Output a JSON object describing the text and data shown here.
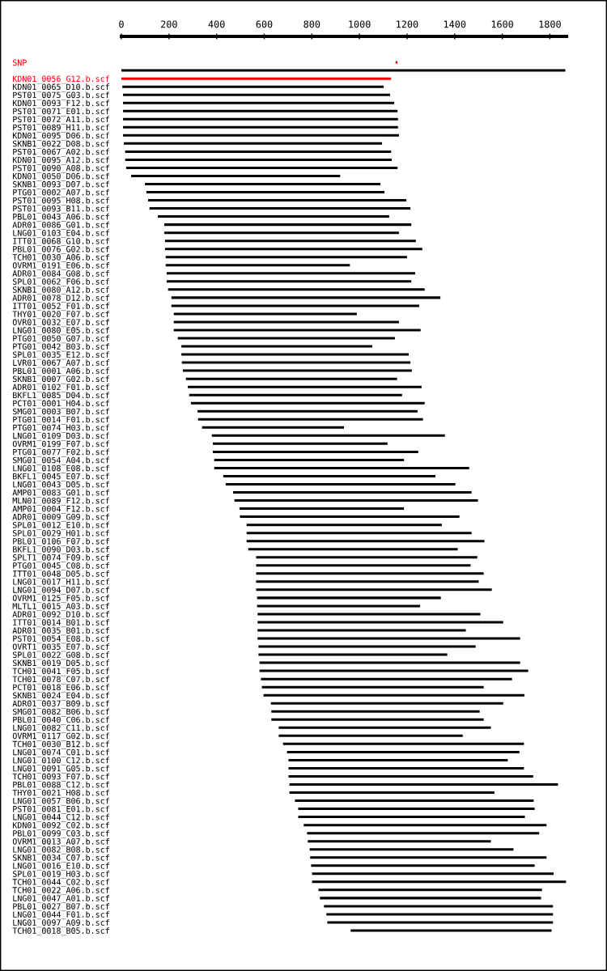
{
  "chart_data": {
    "type": "bar",
    "orientation": "horizontal",
    "categories": [
      "SNP",
      null,
      "KDN01_0056_G12.b.scf",
      "KDN01_0065_D10.b.scf",
      "PST01_0075_G03.b.scf",
      "KDN01_0093_F12.b.scf",
      "PST01_0071_E01.b.scf",
      "PST01_0072_A11.b.scf",
      "PST01_0089_H11.b.scf",
      "KDN01_0095_D06.b.scf",
      "SKNB1_0022_D08.b.scf",
      "PST01_0067_A02.b.scf",
      "KDN01_0095_A12.b.scf",
      "PST01_0090_A08.b.scf",
      "KDN01_0050_D06.b.scf",
      "SKNB1_0093_D07.b.scf",
      "PTG01_0002_A07.b.scf",
      "PST01_0095_H08.b.scf",
      "PST01_0093_B11.b.scf",
      "PBL01_0043_A06.b.scf",
      "ADR01_0086_G01.b.scf",
      "LNG01_0103_E04.b.scf",
      "ITT01_0068_G10.b.scf",
      "PBL01_0076_G02.b.scf",
      "TCH01_0030_A06.b.scf",
      "OVRM1_0191_E06.b.scf",
      "ADR01_0084_G08.b.scf",
      "SPL01_0062_F06.b.scf",
      "SKNB1_0080_A12.b.scf",
      "ADR01_0078_D12.b.scf",
      "ITT01_0052_F01.b.scf",
      "THY01_0020_F07.b.scf",
      "OVR01_0032_E07.b.scf",
      "LNG01_0080_E05.b.scf",
      "PTG01_0050_G07.b.scf",
      "PTG01_0042_B03.b.scf",
      "SPL01_0035_E12.b.scf",
      "LVR01_0067_A07.b.scf",
      "PBL01_0001_A06.b.scf",
      "SKNB1_0007_G02.b.scf",
      "ADR01_0102_F01.b.scf",
      "BKFL1_0085_D04.b.scf",
      "PCT01_0001_H04.b.scf",
      "SMG01_0003_B07.b.scf",
      "PTG01_0014_F01.b.scf",
      "PTG01_0074_H03.b.scf",
      "LNG01_0109_D03.b.scf",
      "OVRM1_0199_F07.b.scf",
      "PTG01_0077_F02.b.scf",
      "SMG01_0054_A04.b.scf",
      "LNG01_0108_E08.b.scf",
      "BKFL1_0045_E07.b.scf",
      "LNG01_0043_D05.b.scf",
      "AMP01_0083_G01.b.scf",
      "MLN01_0089_F12.b.scf",
      "AMP01_0004_F12.b.scf",
      "ADR01_0009_G09.b.scf",
      "SPL01_0012_E10.b.scf",
      "SPL01_0029_H01.b.scf",
      "PBL01_0106_F07.b.scf",
      "BKFL1_0090_D03.b.scf",
      "SPLT1_0074_F09.b.scf",
      "PTG01_0045_C08.b.scf",
      "ITT01_0048_D05.b.scf",
      "LNG01_0017_H11.b.scf",
      "LNG01_0094_D07.b.scf",
      "OVRM1_0125_F05.b.scf",
      "MLTL1_0015_A03.b.scf",
      "ADR01_0092_D10.b.scf",
      "ITT01_0014_B01.b.scf",
      "ADR01_0035_B01.b.scf",
      "PST01_0054_E08.b.scf",
      "OVRT1_0035_E07.b.scf",
      "SPL01_0022_G08.b.scf",
      "SKNB1_0019_D05.b.scf",
      "TCH01_0041_F05.b.scf",
      "TCH01_0078_C07.b.scf",
      "PCT01_0018_E06.b.scf",
      "SKNB1_0024_E04.b.scf",
      "ADR01_0037_B09.b.scf",
      "SMG01_0082_B06.b.scf",
      "PBL01_0040_C06.b.scf",
      "LNG01_0082_C11.b.scf",
      "OVRM1_0117_G02.b.scf",
      "TCH01_0030_B12.b.scf",
      "LNG01_0074_C01.b.scf",
      "LNG01_0100_C12.b.scf",
      "LNG01_0091_G05.b.scf",
      "TCH01_0093_F07.b.scf",
      "PBL01_0088_C12.b.scf",
      "THY01_0021_H08.b.scf",
      "LNG01_0057_B06.b.scf",
      "PST01_0081_E01.b.scf",
      "LNG01_0044_C12.b.scf",
      "KDN01_0092_C02.b.scf",
      "PBL01_0099_C03.b.scf",
      "OVRM1_0013_A07.b.scf",
      "LNG01_0082_B08.b.scf",
      "SKNB1_0034_C07.b.scf",
      "LNG01_0016_E10.b.scf",
      "SPL01_0019_H03.b.scf",
      "TCH01_0044_C02.b.scf",
      "TCH01_0022_A06.b.scf",
      "LNG01_0047_A01.b.scf",
      "PBL01_0027_B07.b.scf",
      "LNG01_0044_F01.b.scf",
      "LNG01_0097_A09.b.scf",
      "TCH01_0018_B05.b.scf"
    ],
    "base": [
      1152,
      0,
      0,
      4,
      7,
      7,
      7,
      7,
      7,
      7,
      10,
      16,
      16,
      20,
      41,
      99,
      105,
      112,
      118,
      153,
      180,
      180,
      183,
      183,
      186,
      186,
      190,
      190,
      196,
      210,
      210,
      220,
      220,
      220,
      237,
      252,
      252,
      254,
      258,
      271,
      279,
      285,
      292,
      320,
      322,
      339,
      380,
      384,
      384,
      390,
      390,
      428,
      438,
      469,
      475,
      496,
      498,
      526,
      526,
      526,
      533,
      566,
      566,
      566,
      566,
      566,
      570,
      570,
      572,
      572,
      572,
      572,
      576,
      576,
      580,
      580,
      586,
      590,
      597,
      628,
      630,
      630,
      661,
      661,
      679,
      696,
      702,
      702,
      702,
      706,
      706,
      729,
      743,
      743,
      766,
      780,
      783,
      791,
      793,
      797,
      801,
      801,
      828,
      834,
      851,
      861,
      865,
      963
    ],
    "values": [
      8,
      1865,
      1133,
      1098,
      1122,
      1139,
      1153,
      1155,
      1155,
      1159,
      1085,
      1117,
      1120,
      1140,
      878,
      989,
      1000,
      1085,
      1096,
      972,
      1038,
      986,
      1054,
      1081,
      1014,
      774,
      1044,
      1028,
      1078,
      1130,
      1041,
      769,
      946,
      1037,
      912,
      802,
      955,
      960,
      962,
      887,
      982,
      894,
      982,
      924,
      945,
      596,
      979,
      734,
      863,
      797,
      1071,
      891,
      965,
      1002,
      1023,
      691,
      922,
      820,
      945,
      999,
      880,
      929,
      901,
      956,
      935,
      990,
      772,
      685,
      936,
      1032,
      875,
      1103,
      912,
      793,
      1095,
      1129,
      1055,
      932,
      1096,
      976,
      875,
      892,
      891,
      773,
      1012,
      976,
      921,
      989,
      1028,
      1128,
      861,
      1003,
      993,
      952,
      1020,
      975,
      769,
      856,
      993,
      939,
      1015,
      1067,
      939,
      929,
      962,
      952,
      948,
      844
    ],
    "colors": [
      "#ff0000",
      "#000000",
      "#ff0000",
      "#000000",
      "#000000",
      "#000000",
      "#000000",
      "#000000",
      "#000000",
      "#000000",
      "#000000",
      "#000000",
      "#000000",
      "#000000",
      "#000000",
      "#000000",
      "#000000",
      "#000000",
      "#000000",
      "#000000",
      "#000000",
      "#000000",
      "#000000",
      "#000000",
      "#000000",
      "#000000",
      "#000000",
      "#000000",
      "#000000",
      "#000000",
      "#000000",
      "#000000",
      "#000000",
      "#000000",
      "#000000",
      "#000000",
      "#000000",
      "#000000",
      "#000000",
      "#000000",
      "#000000",
      "#000000",
      "#000000",
      "#000000",
      "#000000",
      "#000000",
      "#000000",
      "#000000",
      "#000000",
      "#000000",
      "#000000",
      "#000000",
      "#000000",
      "#000000",
      "#000000",
      "#000000",
      "#000000",
      "#000000",
      "#000000",
      "#000000",
      "#000000",
      "#000000",
      "#000000",
      "#000000",
      "#000000",
      "#000000",
      "#000000",
      "#000000",
      "#000000",
      "#000000",
      "#000000",
      "#000000",
      "#000000",
      "#000000",
      "#000000",
      "#000000",
      "#000000",
      "#000000",
      "#000000",
      "#000000",
      "#000000",
      "#000000",
      "#000000",
      "#000000",
      "#000000",
      "#000000",
      "#000000",
      "#000000",
      "#000000",
      "#000000",
      "#000000",
      "#000000",
      "#000000",
      "#000000",
      "#000000",
      "#000000",
      "#000000",
      "#000000",
      "#000000",
      "#000000",
      "#000000",
      "#000000",
      "#000000",
      "#000000",
      "#000000",
      "#000000",
      "#000000",
      "#000000"
    ],
    "xlim": [
      0,
      1870
    ],
    "xticks": [
      0,
      200,
      400,
      600,
      800,
      1000,
      1200,
      1400,
      1600,
      1800
    ]
  }
}
